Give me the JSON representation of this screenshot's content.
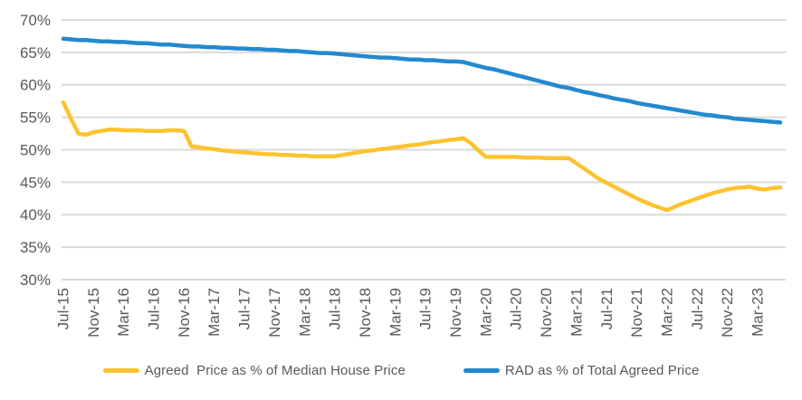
{
  "chart_data": {
    "type": "line",
    "title": "",
    "xlabel": "",
    "ylabel": "",
    "ylim": [
      30,
      70
    ],
    "y_tick_step": 5,
    "y_tick_labels": [
      "70%",
      "65%",
      "60%",
      "55%",
      "50%",
      "45%",
      "40%",
      "35%",
      "30%"
    ],
    "x_tick_labels": [
      "Jul-15",
      "Nov-15",
      "Mar-16",
      "Jul-16",
      "Nov-16",
      "Mar-17",
      "Jul-17",
      "Nov-17",
      "Mar-18",
      "Jul-18",
      "Nov-18",
      "Mar-19",
      "Jul-19",
      "Nov-19",
      "Mar-20",
      "Jul-20",
      "Nov-20",
      "Mar-21",
      "Jul-21",
      "Nov-21",
      "Mar-22",
      "Jul-22",
      "Nov-22",
      "Mar-23"
    ],
    "points_per_tick": 4,
    "grid": "horizontal",
    "legend_position": "bottom",
    "gridline_color": "#D9D9D9",
    "axis_text_color": "#595959",
    "series": [
      {
        "name": "Agreed  Price as % of Median House Price",
        "color": "#FDC32F",
        "values": [
          57.3,
          54.8,
          52.5,
          52.3,
          52.7,
          52.9,
          53.1,
          53.1,
          53.0,
          53.0,
          53.0,
          52.9,
          52.9,
          52.9,
          53.0,
          53.0,
          52.9,
          50.5,
          50.4,
          50.2,
          50.1,
          49.9,
          49.8,
          49.7,
          49.6,
          49.5,
          49.4,
          49.3,
          49.3,
          49.2,
          49.2,
          49.1,
          49.1,
          49.0,
          49.0,
          49.0,
          49.0,
          49.2,
          49.4,
          49.6,
          49.8,
          49.9,
          50.1,
          50.2,
          50.4,
          50.5,
          50.7,
          50.8,
          51.0,
          51.2,
          51.3,
          51.5,
          51.6,
          51.8,
          51.0,
          49.9,
          48.9,
          48.9,
          48.9,
          48.9,
          48.9,
          48.8,
          48.8,
          48.8,
          48.7,
          48.7,
          48.7,
          48.7,
          47.9,
          47.1,
          46.3,
          45.5,
          44.9,
          44.3,
          43.7,
          43.1,
          42.5,
          42.0,
          41.5,
          41.1,
          40.7,
          41.2,
          41.7,
          42.1,
          42.5,
          42.9,
          43.3,
          43.6,
          43.9,
          44.1,
          44.2,
          44.3,
          44.0,
          43.9,
          44.1,
          44.2
        ]
      },
      {
        "name": "RAD as % of Total Agreed Price",
        "color": "#2389CE",
        "values": [
          67.1,
          67.0,
          66.9,
          66.9,
          66.8,
          66.7,
          66.7,
          66.6,
          66.6,
          66.5,
          66.4,
          66.4,
          66.3,
          66.2,
          66.2,
          66.1,
          66.0,
          65.9,
          65.9,
          65.8,
          65.8,
          65.7,
          65.7,
          65.6,
          65.6,
          65.5,
          65.5,
          65.4,
          65.4,
          65.3,
          65.2,
          65.2,
          65.1,
          65.0,
          64.9,
          64.9,
          64.8,
          64.7,
          64.6,
          64.5,
          64.4,
          64.3,
          64.2,
          64.2,
          64.1,
          64.0,
          63.9,
          63.9,
          63.8,
          63.8,
          63.7,
          63.6,
          63.6,
          63.5,
          63.2,
          62.9,
          62.6,
          62.4,
          62.1,
          61.8,
          61.5,
          61.2,
          60.9,
          60.6,
          60.3,
          60.0,
          59.7,
          59.5,
          59.2,
          58.9,
          58.7,
          58.4,
          58.2,
          57.9,
          57.7,
          57.5,
          57.2,
          57.0,
          56.8,
          56.6,
          56.4,
          56.2,
          56.0,
          55.8,
          55.6,
          55.4,
          55.3,
          55.1,
          55.0,
          54.8,
          54.7,
          54.6,
          54.5,
          54.4,
          54.3,
          54.2
        ]
      }
    ]
  }
}
